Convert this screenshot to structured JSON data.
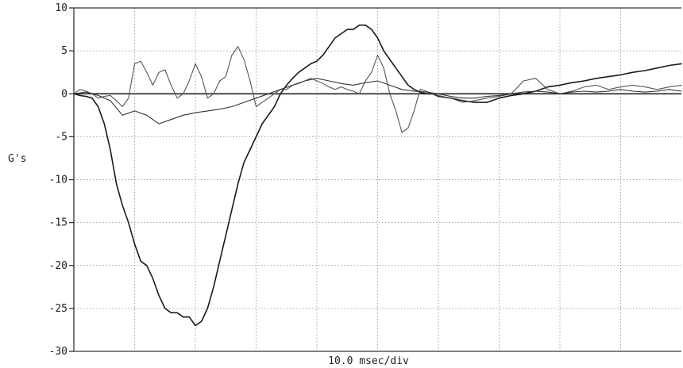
{
  "chart_data": {
    "type": "line",
    "title": "",
    "xlabel": "10.0 msec/div",
    "ylabel": "G's",
    "ylim": [
      -30,
      10
    ],
    "yticks": [
      10,
      5,
      0,
      -5,
      -10,
      -15,
      -20,
      -25,
      -30
    ],
    "ytick_labels": [
      "10",
      "5",
      "0",
      "-5",
      "-10",
      "-15",
      "-20",
      "-25",
      "-30"
    ],
    "xlim": [
      0,
      100
    ],
    "x_unit": "msec",
    "grid": true,
    "legend": "none",
    "series": [
      {
        "color": "#1a1a1a",
        "x": [
          0,
          1,
          2,
          3,
          4,
          5,
          6,
          7,
          8,
          9,
          10,
          11,
          12,
          13,
          14,
          15,
          16,
          17,
          18,
          19,
          20,
          21,
          22,
          23,
          24,
          25,
          26,
          27,
          28,
          29,
          30,
          31,
          32,
          33,
          34,
          35,
          36,
          37,
          38,
          39,
          40,
          41,
          42,
          43,
          44,
          45,
          46,
          47,
          48,
          49,
          50,
          51,
          52,
          53,
          54,
          55,
          56,
          57,
          58,
          59,
          60,
          62,
          64,
          66,
          68,
          70,
          72,
          74,
          76,
          78,
          80,
          82,
          84,
          86,
          88,
          90,
          92,
          94,
          96,
          98,
          100
        ],
        "y": [
          0,
          -0.2,
          -0.3,
          -0.5,
          -1.5,
          -3.5,
          -6.5,
          -10.5,
          -13,
          -15,
          -17.5,
          -19.5,
          -20,
          -21.5,
          -23.5,
          -25,
          -25.5,
          -25.5,
          -26,
          -26,
          -27,
          -26.5,
          -25,
          -22.5,
          -19.5,
          -16.5,
          -13.5,
          -10.5,
          -8,
          -6.5,
          -5,
          -3.5,
          -2.5,
          -1.5,
          0,
          1,
          1.8,
          2.5,
          3,
          3.5,
          3.8,
          4.5,
          5.5,
          6.5,
          7,
          7.5,
          7.5,
          8,
          8,
          7.5,
          6.5,
          5,
          4,
          3,
          2,
          1,
          0.5,
          0.2,
          0,
          0,
          -0.3,
          -0.5,
          -0.8,
          -1,
          -1,
          -0.5,
          -0.2,
          0,
          0.3,
          0.8,
          1,
          1.3,
          1.5,
          1.8,
          2,
          2.2,
          2.5,
          2.7,
          3,
          3.3,
          3.5
        ]
      },
      {
        "color": "#555555",
        "x": [
          0,
          1,
          2,
          3,
          4,
          5,
          6,
          7,
          8,
          9,
          10,
          11,
          12,
          13,
          14,
          15,
          16,
          17,
          18,
          19,
          20,
          21,
          22,
          23,
          24,
          25,
          26,
          27,
          28,
          29,
          30,
          31,
          32,
          33,
          34,
          35,
          36,
          37,
          38,
          39,
          40,
          41,
          42,
          43,
          44,
          45,
          46,
          47,
          48,
          49,
          50,
          51,
          52,
          53,
          54,
          55,
          56,
          57,
          58,
          59,
          60,
          62,
          64,
          66,
          68,
          70,
          72,
          74,
          76,
          78,
          80,
          82,
          84,
          86,
          88,
          90,
          92,
          94,
          96,
          98,
          100
        ],
        "y": [
          0,
          0.5,
          0.3,
          0,
          -0.5,
          -0.3,
          -0.2,
          -0.8,
          -1.5,
          -0.5,
          3.5,
          3.8,
          2.5,
          1,
          2.5,
          2.8,
          1,
          -0.5,
          0,
          1.5,
          3.5,
          2,
          -0.5,
          0,
          1.5,
          2,
          4.5,
          5.5,
          4,
          1.5,
          -1.5,
          -1,
          -0.5,
          0,
          0.5,
          0.5,
          1,
          1.2,
          1.5,
          1.8,
          1.5,
          1.2,
          0.8,
          0.5,
          0.8,
          0.5,
          0.3,
          0,
          1.5,
          2.5,
          4.5,
          3,
          0,
          -2,
          -4.5,
          -4,
          -2,
          0.5,
          0.3,
          0,
          -0.2,
          -0.5,
          -1,
          -0.8,
          -0.5,
          -0.3,
          0,
          1.5,
          1.8,
          0.5,
          0,
          0.3,
          0.8,
          1,
          0.5,
          0.8,
          1,
          0.8,
          0.5,
          0.8,
          1
        ]
      },
      {
        "color": "#333333",
        "x": [
          0,
          2,
          4,
          6,
          8,
          10,
          12,
          14,
          16,
          18,
          20,
          22,
          24,
          26,
          28,
          30,
          32,
          34,
          36,
          38,
          40,
          42,
          44,
          46,
          48,
          50,
          52,
          54,
          56,
          58,
          60,
          62,
          64,
          66,
          68,
          70,
          72,
          74,
          76,
          78,
          80,
          82,
          84,
          86,
          88,
          90,
          92,
          94,
          96,
          98,
          100
        ],
        "y": [
          0,
          0.2,
          -0.2,
          -0.8,
          -2.5,
          -2,
          -2.5,
          -3.5,
          -3,
          -2.5,
          -2.2,
          -2,
          -1.8,
          -1.5,
          -1,
          -0.5,
          0,
          0.5,
          1,
          1.5,
          1.8,
          1.5,
          1.2,
          1,
          1.3,
          1.5,
          1,
          0.5,
          0.3,
          0.2,
          0,
          -0.3,
          -0.5,
          -0.5,
          -0.3,
          -0.2,
          0,
          0.2,
          0.3,
          0.2,
          0,
          0.2,
          0.3,
          0.2,
          0.3,
          0.5,
          0.3,
          0.2,
          0.3,
          0.5,
          0.3
        ]
      }
    ]
  }
}
